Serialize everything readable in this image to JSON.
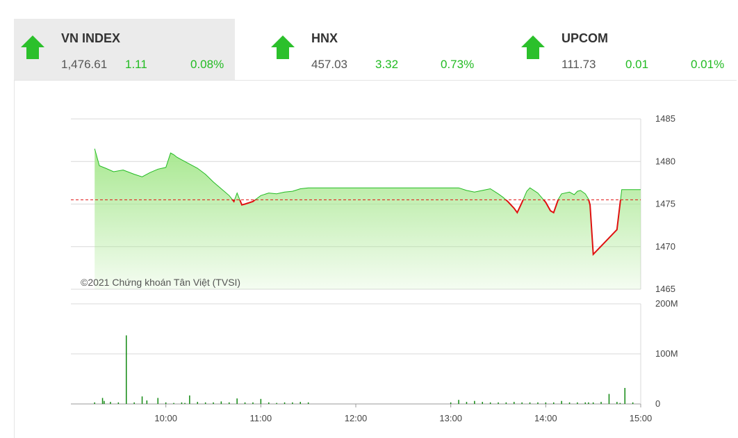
{
  "indices": [
    {
      "name": "VN INDEX",
      "value": "1,476.61",
      "change": "1.11",
      "percent": "0.08%",
      "active": true
    },
    {
      "name": "HNX",
      "value": "457.03",
      "change": "3.32",
      "percent": "0.73%",
      "active": false
    },
    {
      "name": "UPCOM",
      "value": "111.73",
      "change": "0.01",
      "percent": "0.01%",
      "active": false
    }
  ],
  "colors": {
    "up": "#22bb22",
    "down": "#e01010",
    "reference": "#e01010",
    "area_top": "#a8e890",
    "volume": "#118811"
  },
  "chart_data": [
    {
      "type": "area",
      "reference_value": 1475.5,
      "ylim": [
        1465,
        1485
      ],
      "y_ticks": [
        "1485",
        "1480",
        "1475",
        "1470",
        "1465"
      ],
      "x": [
        "09:15",
        "09:18",
        "09:22",
        "09:27",
        "09:33",
        "09:40",
        "09:45",
        "09:50",
        "09:55",
        "10:00",
        "10:03",
        "10:05",
        "10:07",
        "10:10",
        "10:15",
        "10:20",
        "10:25",
        "10:30",
        "10:35",
        "10:40",
        "10:43",
        "10:45",
        "10:48",
        "10:50",
        "10:55",
        "11:00",
        "11:05",
        "11:10",
        "11:15",
        "11:20",
        "11:25",
        "11:30",
        "12:00",
        "12:30",
        "13:00",
        "13:05",
        "13:10",
        "13:15",
        "13:20",
        "13:25",
        "13:30",
        "13:33",
        "13:36",
        "13:38",
        "13:40",
        "13:42",
        "13:45",
        "13:48",
        "13:50",
        "13:55",
        "14:00",
        "14:03",
        "14:05",
        "14:08",
        "14:10",
        "14:15",
        "14:18",
        "14:20",
        "14:22",
        "14:25",
        "14:27",
        "14:28",
        "14:30",
        "14:45",
        "14:48",
        "15:00"
      ],
      "y": [
        1481.5,
        1479.5,
        1479.2,
        1478.8,
        1479.0,
        1478.5,
        1478.2,
        1478.7,
        1479.1,
        1479.3,
        1481.0,
        1480.8,
        1480.5,
        1480.2,
        1479.7,
        1479.2,
        1478.5,
        1477.6,
        1476.8,
        1476.0,
        1475.3,
        1476.3,
        1474.9,
        1475.0,
        1475.3,
        1476.0,
        1476.3,
        1476.2,
        1476.4,
        1476.5,
        1476.8,
        1476.9,
        1476.9,
        1476.9,
        1476.9,
        1476.9,
        1476.6,
        1476.4,
        1476.6,
        1476.8,
        1476.2,
        1475.8,
        1475.3,
        1474.9,
        1474.5,
        1474.0,
        1475.2,
        1476.5,
        1476.9,
        1476.3,
        1475.2,
        1474.2,
        1474.0,
        1475.6,
        1476.2,
        1476.4,
        1476.1,
        1476.5,
        1476.6,
        1476.2,
        1475.6,
        1474.9,
        1469.1,
        1472.0,
        1476.7,
        1476.7
      ],
      "copyright": "©2021 Chứng khoán Tân Việt (TVSI)"
    },
    {
      "type": "bar",
      "ylim": [
        0,
        200
      ],
      "y_ticks": [
        "200M",
        "100M",
        "0"
      ],
      "x_ticks": [
        "10:00",
        "11:00",
        "12:00",
        "13:00",
        "14:00",
        "15:00"
      ],
      "x": [
        "09:15",
        "09:20",
        "09:21",
        "09:25",
        "09:30",
        "09:35",
        "09:40",
        "09:45",
        "09:48",
        "09:55",
        "10:00",
        "10:05",
        "10:10",
        "10:12",
        "10:15",
        "10:20",
        "10:25",
        "10:30",
        "10:35",
        "10:40",
        "10:45",
        "10:50",
        "10:55",
        "11:00",
        "11:05",
        "11:10",
        "11:15",
        "11:20",
        "11:25",
        "11:30",
        "13:00",
        "13:05",
        "13:10",
        "13:15",
        "13:20",
        "13:25",
        "13:30",
        "13:35",
        "13:40",
        "13:45",
        "13:50",
        "13:55",
        "14:00",
        "14:05",
        "14:10",
        "14:15",
        "14:20",
        "14:25",
        "14:27",
        "14:30",
        "14:35",
        "14:40",
        "14:45",
        "14:47",
        "14:50",
        "14:55"
      ],
      "y": [
        3,
        12,
        6,
        4,
        3,
        137,
        3,
        15,
        7,
        12,
        3,
        2,
        3,
        2,
        17,
        4,
        3,
        3,
        5,
        3,
        11,
        3,
        3,
        10,
        3,
        2,
        3,
        3,
        4,
        3,
        3,
        8,
        4,
        6,
        4,
        3,
        3,
        3,
        4,
        3,
        3,
        3,
        3,
        3,
        6,
        3,
        3,
        3,
        3,
        3,
        4,
        20,
        4,
        2,
        32,
        3
      ]
    }
  ]
}
